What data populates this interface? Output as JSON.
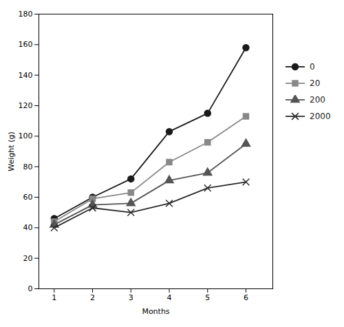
{
  "chart_data": {
    "type": "line",
    "x": [
      1,
      2,
      3,
      4,
      5,
      6
    ],
    "series": [
      {
        "name": "0",
        "color": "#1a1a1a",
        "marker": "circle",
        "line_style": "solid",
        "values": [
          46,
          60,
          72,
          103,
          115,
          158
        ]
      },
      {
        "name": "20",
        "color": "#888888",
        "marker": "square",
        "line_style": "solid",
        "values": [
          44,
          59,
          63,
          83,
          96,
          113
        ]
      },
      {
        "name": "200",
        "color": "#555555",
        "marker": "triangle",
        "line_style": "solid",
        "values": [
          42,
          55,
          56,
          71,
          76,
          95
        ]
      },
      {
        "name": "2000",
        "color": "#2a2a2a",
        "marker": "times",
        "line_style": "solid",
        "values": [
          40,
          53,
          50,
          56,
          66,
          70
        ]
      }
    ],
    "xlabel": "Months",
    "ylabel": "Weight (g)",
    "xlim": [
      0.6,
      6.7
    ],
    "ylim": [
      0,
      180
    ],
    "xticks": [
      1,
      2,
      3,
      4,
      5,
      6
    ],
    "yticks": [
      0,
      20,
      40,
      60,
      80,
      100,
      120,
      140,
      160,
      180
    ],
    "grid": false,
    "legend": "right"
  }
}
